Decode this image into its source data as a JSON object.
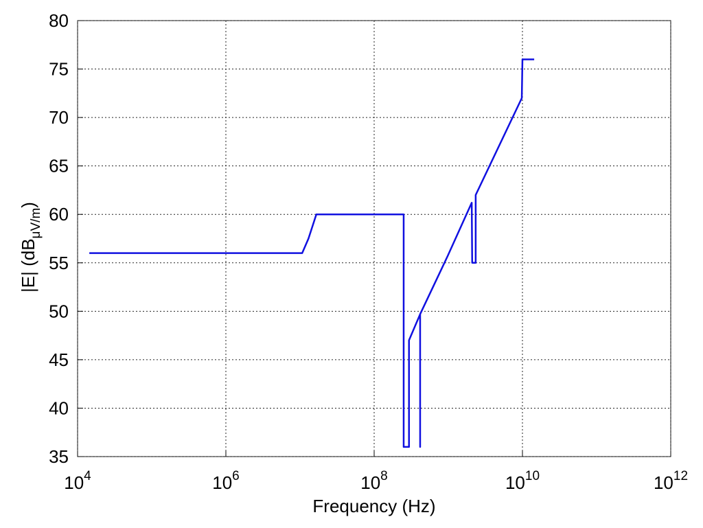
{
  "chart_data": {
    "type": "line",
    "xlabel": "Frequency (Hz)",
    "ylabel": [
      "|E| (dB",
      "μV/m",
      ")"
    ],
    "xscale": "log",
    "xlim": [
      10000,
      1000000000000
    ],
    "ylim": [
      35,
      80
    ],
    "xticks": [
      {
        "value": 10000,
        "label": "10^4"
      },
      {
        "value": 1000000,
        "label": "10^6"
      },
      {
        "value": 100000000,
        "label": "10^8"
      },
      {
        "value": 10000000000,
        "label": "10^10"
      },
      {
        "value": 1000000000000,
        "label": "10^12"
      }
    ],
    "yticks": [
      35,
      40,
      45,
      50,
      55,
      60,
      65,
      70,
      75,
      80
    ],
    "grid": true,
    "series": [
      {
        "color": "#1010e0",
        "x": [
          14400,
          10700000,
          13000000,
          16600000,
          250000000,
          250000000,
          295000000,
          295000000,
          417000000,
          417000000,
          417000000,
          980000000,
          2070000000,
          2100000000,
          2100000000,
          2340000000,
          2340000000,
          9800000000,
          10000000000,
          14400000000
        ],
        "values": [
          56,
          56,
          57.5,
          60,
          60,
          36,
          36,
          47,
          49.7,
          36,
          49.7,
          55.7,
          61.2,
          55,
          55,
          55,
          62,
          72,
          76,
          76
        ]
      }
    ]
  }
}
